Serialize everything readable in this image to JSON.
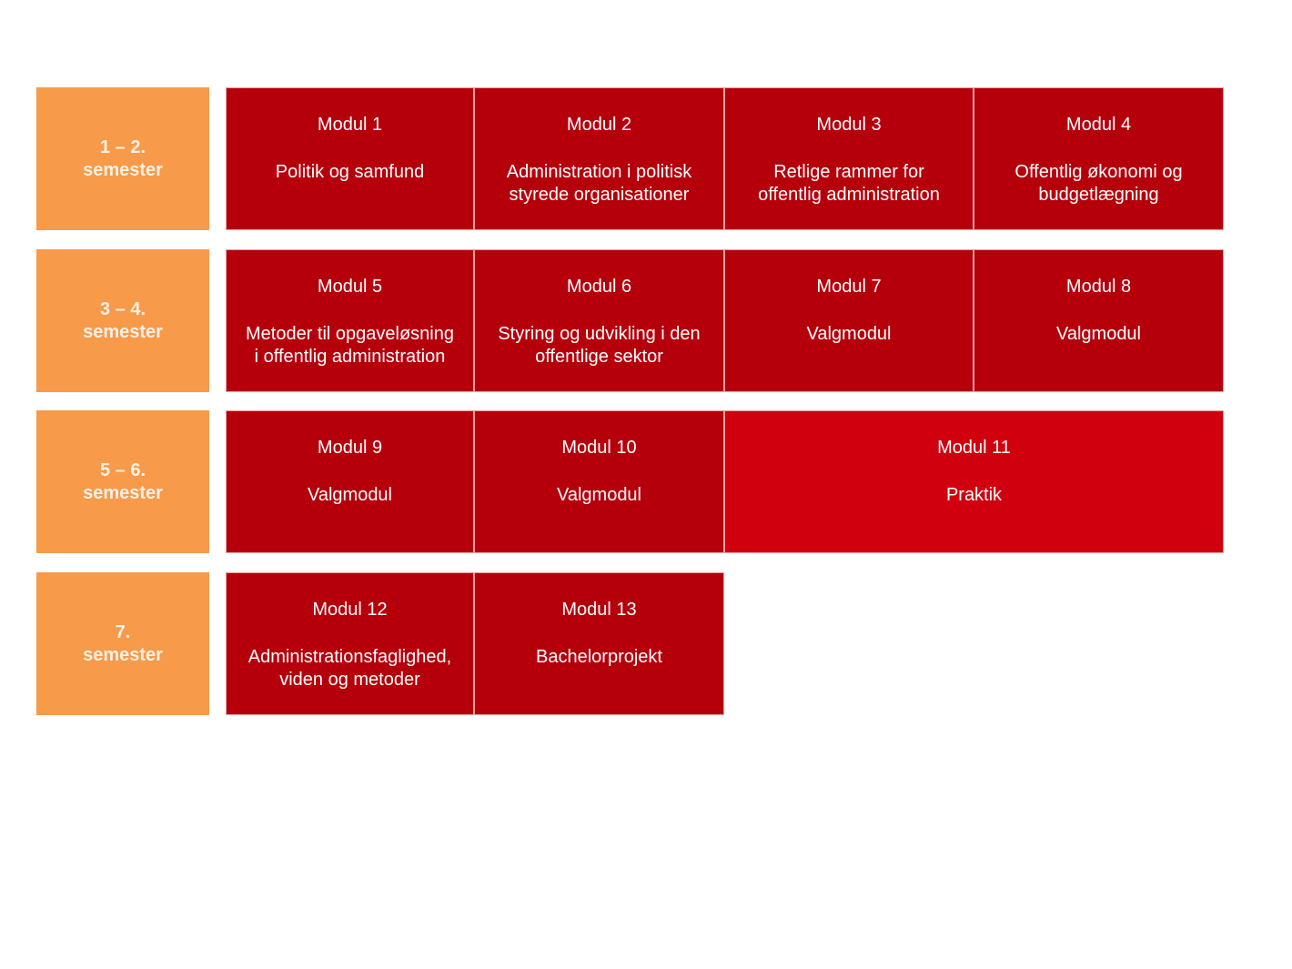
{
  "colors": {
    "semester": "#f79a4a",
    "module": "#b5000c",
    "praktik": "#d0000f"
  },
  "rows": [
    {
      "semester": "1 – 2.\nsemester",
      "modules": [
        {
          "title": "Modul 1",
          "desc": "Politik og samfund"
        },
        {
          "title": "Modul 2",
          "desc": "Administration i politisk\nstyrede organisationer"
        },
        {
          "title": "Modul 3",
          "desc": "Retlige rammer for\noffentlig administration"
        },
        {
          "title": "Modul 4",
          "desc": "Offentlig økonomi og\nbudgetlægning"
        }
      ]
    },
    {
      "semester": "3 – 4.\nsemester",
      "modules": [
        {
          "title": "Modul 5",
          "desc": "Metoder til opgaveløsning\ni offentlig administration"
        },
        {
          "title": "Modul 6",
          "desc": "Styring og udvikling i den\noffentlige sektor"
        },
        {
          "title": "Modul 7",
          "desc": "Valgmodul"
        },
        {
          "title": "Modul 8",
          "desc": "Valgmodul"
        }
      ]
    },
    {
      "semester": "5 – 6.\nsemester",
      "modules": [
        {
          "title": "Modul 9",
          "desc": "Valgmodul"
        },
        {
          "title": "Modul 10",
          "desc": "Valgmodul"
        },
        {
          "title": "Modul 11",
          "desc": "Praktik"
        }
      ]
    },
    {
      "semester": "7.\nsemester",
      "modules": [
        {
          "title": "Modul 12",
          "desc": "Administrationsfaglighed,\nviden og metoder"
        },
        {
          "title": "Modul 13",
          "desc": "Bachelorprojekt"
        }
      ]
    }
  ]
}
